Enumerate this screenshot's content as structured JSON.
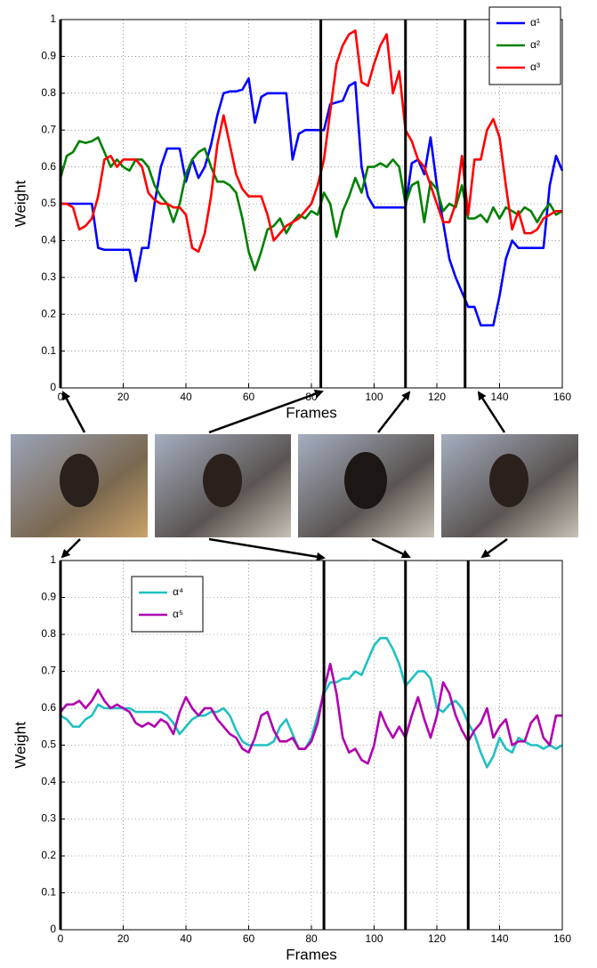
{
  "chart_data": [
    {
      "type": "line",
      "xlabel": "Frames",
      "ylabel": "Weight",
      "x": [
        0,
        2,
        4,
        6,
        8,
        10,
        12,
        14,
        16,
        18,
        20,
        22,
        24,
        26,
        28,
        30,
        32,
        34,
        36,
        38,
        40,
        42,
        44,
        46,
        48,
        50,
        52,
        54,
        56,
        58,
        60,
        62,
        64,
        66,
        68,
        70,
        72,
        74,
        76,
        78,
        80,
        82,
        84,
        86,
        88,
        90,
        92,
        94,
        96,
        98,
        100,
        102,
        104,
        106,
        108,
        110,
        112,
        114,
        116,
        118,
        120,
        122,
        124,
        126,
        128,
        130,
        132,
        134,
        136,
        138,
        140,
        142,
        144,
        146,
        148,
        150,
        152,
        154,
        156,
        158,
        160
      ],
      "series": [
        {
          "name": "α¹",
          "color": "#0000ff",
          "values": [
            0.5,
            0.5,
            0.5,
            0.5,
            0.5,
            0.5,
            0.38,
            0.375,
            0.375,
            0.375,
            0.375,
            0.375,
            0.29,
            0.38,
            0.38,
            0.5,
            0.6,
            0.65,
            0.65,
            0.65,
            0.56,
            0.62,
            0.57,
            0.6,
            0.66,
            0.74,
            0.8,
            0.805,
            0.805,
            0.81,
            0.84,
            0.72,
            0.79,
            0.8,
            0.8,
            0.8,
            0.8,
            0.62,
            0.69,
            0.7,
            0.7,
            0.7,
            0.7,
            0.77,
            0.775,
            0.78,
            0.82,
            0.83,
            0.6,
            0.52,
            0.49,
            0.49,
            0.49,
            0.49,
            0.49,
            0.49,
            0.61,
            0.62,
            0.58,
            0.68,
            0.55,
            0.45,
            0.35,
            0.3,
            0.26,
            0.22,
            0.22,
            0.17,
            0.17,
            0.17,
            0.25,
            0.35,
            0.4,
            0.38,
            0.38,
            0.38,
            0.38,
            0.38,
            0.55,
            0.63,
            0.59
          ]
        },
        {
          "name": "α²",
          "color": "#008000",
          "values": [
            0.57,
            0.63,
            0.64,
            0.67,
            0.665,
            0.67,
            0.68,
            0.64,
            0.6,
            0.62,
            0.6,
            0.59,
            0.62,
            0.62,
            0.6,
            0.55,
            0.52,
            0.5,
            0.45,
            0.5,
            0.58,
            0.62,
            0.64,
            0.65,
            0.6,
            0.56,
            0.56,
            0.55,
            0.53,
            0.46,
            0.37,
            0.32,
            0.37,
            0.43,
            0.44,
            0.46,
            0.42,
            0.45,
            0.47,
            0.46,
            0.48,
            0.47,
            0.53,
            0.5,
            0.41,
            0.48,
            0.52,
            0.57,
            0.53,
            0.6,
            0.6,
            0.61,
            0.6,
            0.62,
            0.6,
            0.5,
            0.55,
            0.56,
            0.45,
            0.56,
            0.54,
            0.48,
            0.5,
            0.49,
            0.55,
            0.46,
            0.46,
            0.47,
            0.45,
            0.49,
            0.46,
            0.49,
            0.48,
            0.47,
            0.49,
            0.48,
            0.45,
            0.48,
            0.5,
            0.47,
            0.48
          ]
        },
        {
          "name": "α³",
          "color": "#ff0000",
          "values": [
            0.5,
            0.5,
            0.49,
            0.43,
            0.44,
            0.46,
            0.52,
            0.62,
            0.63,
            0.6,
            0.62,
            0.62,
            0.62,
            0.6,
            0.53,
            0.51,
            0.5,
            0.5,
            0.49,
            0.49,
            0.47,
            0.38,
            0.37,
            0.42,
            0.52,
            0.66,
            0.74,
            0.66,
            0.58,
            0.54,
            0.52,
            0.52,
            0.52,
            0.47,
            0.4,
            0.42,
            0.44,
            0.45,
            0.46,
            0.48,
            0.5,
            0.55,
            0.62,
            0.75,
            0.88,
            0.93,
            0.96,
            0.97,
            0.83,
            0.82,
            0.88,
            0.93,
            0.96,
            0.8,
            0.86,
            0.7,
            0.67,
            0.62,
            0.6,
            0.55,
            0.5,
            0.45,
            0.45,
            0.5,
            0.63,
            0.47,
            0.62,
            0.62,
            0.7,
            0.73,
            0.68,
            0.55,
            0.43,
            0.48,
            0.42,
            0.42,
            0.43,
            0.46,
            0.47,
            0.48,
            0.48
          ]
        }
      ],
      "vlines": [
        83,
        110,
        129
      ],
      "xlim": [
        0,
        160
      ],
      "ylim": [
        0,
        1
      ],
      "xticks": [
        0,
        20,
        40,
        60,
        80,
        100,
        120,
        140,
        160
      ],
      "yticks": [
        0,
        0.1,
        0.2,
        0.3,
        0.4,
        0.5,
        0.6,
        0.7,
        0.8,
        0.9,
        1
      ],
      "grid": true,
      "legend": "upper right"
    },
    {
      "type": "line",
      "xlabel": "Frames",
      "ylabel": "Weight",
      "x": [
        0,
        2,
        4,
        6,
        8,
        10,
        12,
        14,
        16,
        18,
        20,
        22,
        24,
        26,
        28,
        30,
        32,
        34,
        36,
        38,
        40,
        42,
        44,
        46,
        48,
        50,
        52,
        54,
        56,
        58,
        60,
        62,
        64,
        66,
        68,
        70,
        72,
        74,
        76,
        78,
        80,
        82,
        84,
        86,
        88,
        90,
        92,
        94,
        96,
        98,
        100,
        102,
        104,
        106,
        108,
        110,
        112,
        114,
        116,
        118,
        120,
        122,
        124,
        126,
        128,
        130,
        132,
        134,
        136,
        138,
        140,
        142,
        144,
        146,
        148,
        150,
        152,
        154,
        156,
        158,
        160
      ],
      "series": [
        {
          "name": "α⁴",
          "color": "#20c0c0",
          "values": [
            0.58,
            0.57,
            0.55,
            0.55,
            0.57,
            0.58,
            0.61,
            0.6,
            0.6,
            0.6,
            0.6,
            0.6,
            0.59,
            0.59,
            0.59,
            0.59,
            0.59,
            0.58,
            0.56,
            0.53,
            0.55,
            0.57,
            0.58,
            0.58,
            0.59,
            0.59,
            0.6,
            0.58,
            0.54,
            0.51,
            0.5,
            0.5,
            0.5,
            0.5,
            0.51,
            0.55,
            0.57,
            0.53,
            0.49,
            0.49,
            0.52,
            0.58,
            0.64,
            0.67,
            0.67,
            0.68,
            0.68,
            0.7,
            0.69,
            0.73,
            0.77,
            0.79,
            0.79,
            0.76,
            0.72,
            0.66,
            0.68,
            0.7,
            0.7,
            0.68,
            0.6,
            0.59,
            0.61,
            0.62,
            0.6,
            0.56,
            0.53,
            0.48,
            0.44,
            0.47,
            0.52,
            0.49,
            0.48,
            0.52,
            0.51,
            0.5,
            0.5,
            0.49,
            0.5,
            0.49,
            0.5
          ]
        },
        {
          "name": "α⁵",
          "color": "#b000b0",
          "values": [
            0.59,
            0.61,
            0.61,
            0.62,
            0.6,
            0.62,
            0.65,
            0.62,
            0.6,
            0.61,
            0.6,
            0.59,
            0.56,
            0.55,
            0.56,
            0.55,
            0.57,
            0.56,
            0.53,
            0.59,
            0.63,
            0.6,
            0.58,
            0.6,
            0.6,
            0.57,
            0.55,
            0.53,
            0.52,
            0.49,
            0.48,
            0.52,
            0.58,
            0.59,
            0.54,
            0.51,
            0.51,
            0.52,
            0.49,
            0.49,
            0.51,
            0.56,
            0.65,
            0.72,
            0.64,
            0.52,
            0.48,
            0.49,
            0.46,
            0.45,
            0.5,
            0.59,
            0.55,
            0.52,
            0.55,
            0.52,
            0.58,
            0.63,
            0.57,
            0.52,
            0.58,
            0.67,
            0.64,
            0.58,
            0.54,
            0.51,
            0.54,
            0.56,
            0.6,
            0.52,
            0.55,
            0.57,
            0.5,
            0.51,
            0.51,
            0.56,
            0.58,
            0.52,
            0.5,
            0.58,
            0.58
          ]
        }
      ],
      "vlines": [
        84,
        110,
        130
      ],
      "xlim": [
        0,
        160
      ],
      "ylim": [
        0,
        1
      ],
      "xticks": [
        0,
        20,
        40,
        60,
        80,
        100,
        120,
        140,
        160
      ],
      "yticks": [
        0,
        0.1,
        0.2,
        0.3,
        0.4,
        0.5,
        0.6,
        0.7,
        0.8,
        0.9,
        1
      ],
      "grid": true,
      "legend": "upper left"
    }
  ]
}
